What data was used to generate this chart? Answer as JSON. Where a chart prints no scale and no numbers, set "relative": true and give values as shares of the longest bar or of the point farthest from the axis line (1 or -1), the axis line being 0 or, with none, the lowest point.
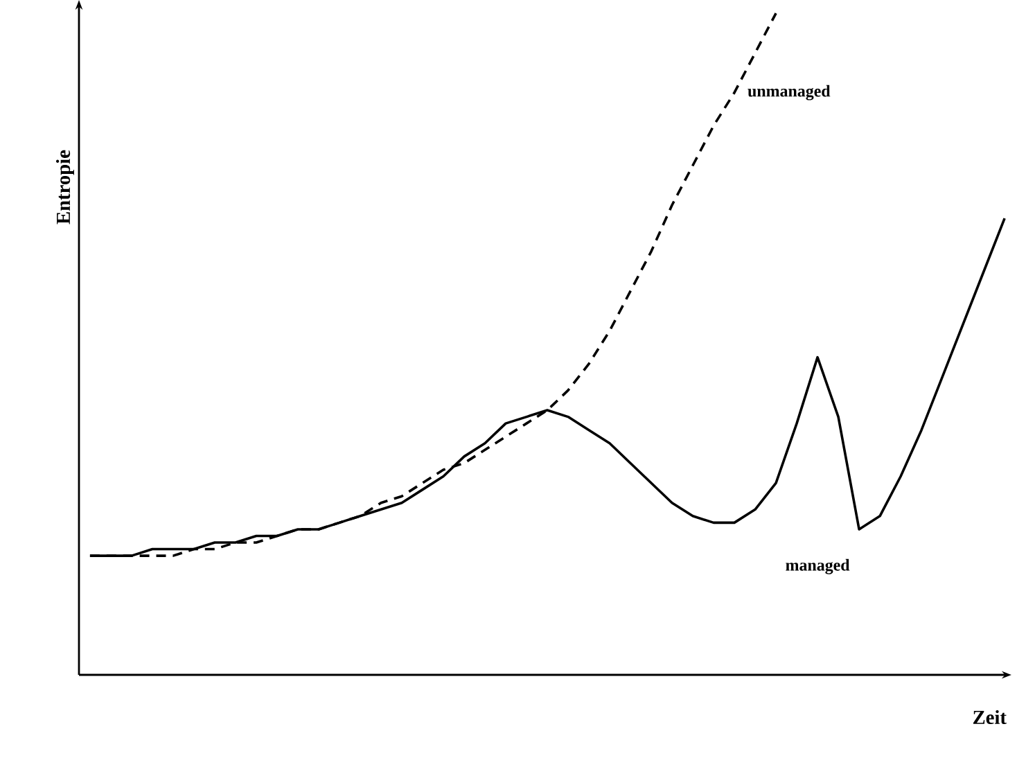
{
  "chart_data": {
    "type": "line",
    "relative": true,
    "xlabel": "Zeit",
    "ylabel": "Entropie",
    "marker": "none",
    "categories": [
      null,
      null,
      null,
      null,
      null,
      null,
      null,
      null,
      null,
      null,
      null,
      null,
      null,
      null,
      null,
      null,
      null,
      null,
      null,
      null,
      null,
      null,
      null,
      null,
      null,
      null,
      null,
      null,
      null,
      null,
      null,
      null,
      null,
      null,
      null,
      null,
      null,
      null,
      null,
      null,
      null,
      null,
      null,
      null,
      null
    ],
    "series": [
      {
        "name": "unmanaged",
        "color": "#000000",
        "line_style": "dashed",
        "values": [
          0.18,
          0.18,
          0.18,
          0.18,
          0.18,
          0.19,
          0.19,
          0.2,
          0.2,
          0.21,
          0.22,
          0.22,
          0.23,
          0.24,
          0.26,
          0.27,
          0.29,
          0.31,
          0.32,
          0.34,
          0.36,
          0.38,
          0.4,
          0.43,
          0.47,
          0.52,
          0.58,
          0.64,
          0.71,
          0.77,
          0.83,
          0.88,
          0.94,
          1.0,
          null,
          null,
          null,
          null,
          null,
          null,
          null,
          null,
          null,
          null,
          null
        ]
      },
      {
        "name": "managed",
        "color": "#000000",
        "line_style": "solid",
        "values": [
          0.18,
          0.18,
          0.18,
          0.19,
          0.19,
          0.19,
          0.2,
          0.2,
          0.21,
          0.21,
          0.22,
          0.22,
          0.23,
          0.24,
          0.25,
          0.26,
          0.28,
          0.3,
          0.33,
          0.35,
          0.38,
          0.39,
          0.4,
          0.39,
          0.37,
          0.35,
          0.32,
          0.29,
          0.26,
          0.24,
          0.23,
          0.23,
          0.25,
          0.29,
          0.38,
          0.48,
          0.39,
          0.22,
          0.24,
          0.3,
          0.37,
          0.45,
          0.53,
          0.61,
          0.69
        ]
      }
    ]
  }
}
